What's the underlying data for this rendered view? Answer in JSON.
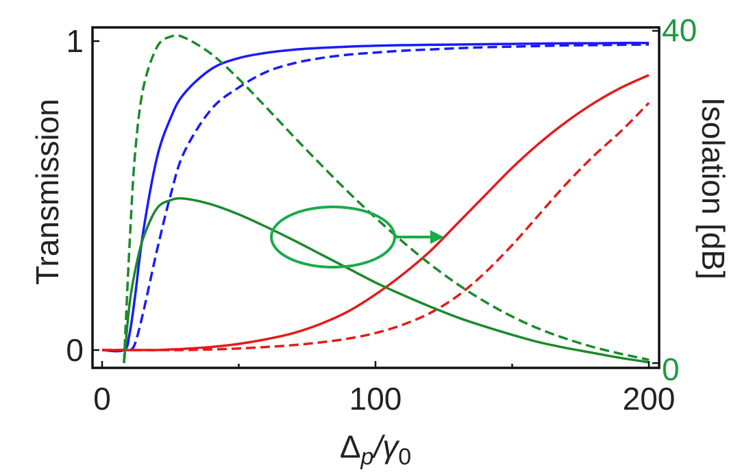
{
  "chart_data": {
    "type": "line",
    "xlabel": "Δp/γ0",
    "xlabel_main": "Δ",
    "xlabel_sub1": "p",
    "xlabel_slash": "/γ",
    "xlabel_sub2": "0",
    "ylabel_left": "Transmission",
    "ylabel_right": "Isolation [dB]",
    "xlim": [
      0,
      200
    ],
    "ylim_left": [
      0,
      1
    ],
    "ylim_right": [
      0,
      40
    ],
    "x_ticks": [
      "0",
      "100",
      "200"
    ],
    "y_ticks_left": [
      "0",
      "1"
    ],
    "y_ticks_right": [
      "0",
      "40"
    ],
    "grid": false,
    "legend": "none",
    "annotation": "ellipse around isolation curves with arrow pointing right (to right axis)",
    "x": [
      8,
      10,
      12,
      15,
      20,
      25,
      30,
      40,
      50,
      60,
      70,
      80,
      90,
      100,
      110,
      120,
      130,
      140,
      150,
      160,
      170,
      180,
      190,
      200
    ],
    "series": [
      {
        "color": "#1a1aff",
        "style": "solid",
        "axis": "left",
        "values": [
          0,
          0.05,
          0.17,
          0.38,
          0.62,
          0.75,
          0.83,
          0.91,
          0.945,
          0.962,
          0.972,
          0.978,
          0.982,
          0.985,
          0.987,
          0.988,
          0.989,
          0.99,
          0.991,
          0.992,
          0.993,
          0.993,
          0.994,
          0.994
        ]
      },
      {
        "color": "#1a1aff",
        "style": "dashed",
        "axis": "left",
        "values": [
          0,
          0,
          0.02,
          0.12,
          0.32,
          0.5,
          0.64,
          0.78,
          0.85,
          0.9,
          0.928,
          0.945,
          0.956,
          0.963,
          0.969,
          0.973,
          0.977,
          0.98,
          0.982,
          0.984,
          0.986,
          0.987,
          0.988,
          0.989
        ]
      },
      {
        "color": "#e61a1a",
        "style": "solid",
        "axis": "left",
        "values": [
          0,
          0,
          0,
          0,
          0,
          0.002,
          0.004,
          0.01,
          0.02,
          0.035,
          0.055,
          0.085,
          0.125,
          0.18,
          0.245,
          0.32,
          0.41,
          0.5,
          0.59,
          0.67,
          0.74,
          0.8,
          0.85,
          0.89
        ]
      },
      {
        "color": "#e61a1a",
        "style": "dashed",
        "axis": "left",
        "values": [
          0,
          0,
          0,
          0,
          0,
          0,
          0,
          0.002,
          0.005,
          0.01,
          0.016,
          0.025,
          0.037,
          0.055,
          0.082,
          0.12,
          0.175,
          0.25,
          0.34,
          0.44,
          0.54,
          0.63,
          0.71,
          0.8
        ]
      },
      {
        "color": "#1a8a2a",
        "style": "solid",
        "axis": "right",
        "values": [
          0,
          7,
          11,
          15,
          18.6,
          19.6,
          19.8,
          19.1,
          17.9,
          16.4,
          14.8,
          13.1,
          11.4,
          9.7,
          8.2,
          6.8,
          5.5,
          4.4,
          3.4,
          2.5,
          1.8,
          1.2,
          0.6,
          0.1
        ]
      },
      {
        "color": "#1a8a2a",
        "style": "dashed",
        "axis": "right",
        "values": [
          0,
          14,
          25,
          33,
          38,
          39.3,
          39.2,
          37.2,
          34.2,
          30.8,
          27.3,
          23.9,
          20.6,
          17.5,
          14.6,
          11.9,
          9.5,
          7.4,
          5.6,
          4.1,
          2.9,
          1.9,
          1.1,
          0.4
        ]
      }
    ]
  }
}
